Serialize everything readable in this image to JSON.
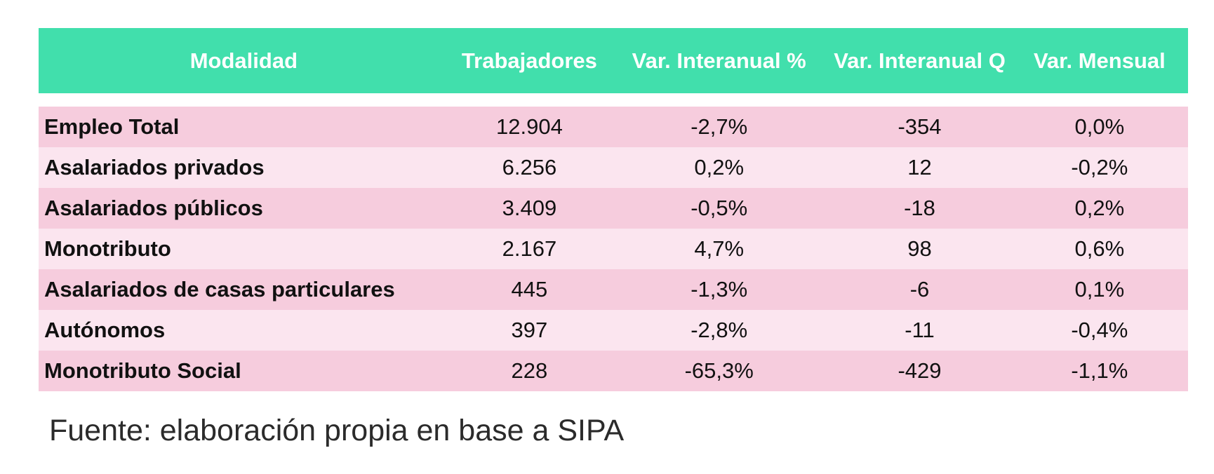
{
  "colors": {
    "page_bg": "#ffffff",
    "header_bg": "#41dfac",
    "header_text": "#ffffff",
    "row_odd_bg": "#f6ccdd",
    "row_even_bg": "#fbe5ef",
    "cell_text": "#111111",
    "source_text": "#2b2b2b"
  },
  "table": {
    "columns": [
      {
        "label": "Modalidad"
      },
      {
        "label": "Trabajadores"
      },
      {
        "label": "Var. Interanual %"
      },
      {
        "label": "Var. Interanual Q"
      },
      {
        "label": "Var. Mensual"
      }
    ],
    "rows": [
      {
        "modalidad": "Empleo Total",
        "trabajadores": "12.904",
        "var_interanual_pct": "-2,7%",
        "var_interanual_q": "-354",
        "var_mensual": "0,0%"
      },
      {
        "modalidad": "Asalariados privados",
        "trabajadores": "6.256",
        "var_interanual_pct": "0,2%",
        "var_interanual_q": "12",
        "var_mensual": "-0,2%"
      },
      {
        "modalidad": "Asalariados públicos",
        "trabajadores": "3.409",
        "var_interanual_pct": "-0,5%",
        "var_interanual_q": "-18",
        "var_mensual": "0,2%"
      },
      {
        "modalidad": "Monotributo",
        "trabajadores": "2.167",
        "var_interanual_pct": "4,7%",
        "var_interanual_q": "98",
        "var_mensual": "0,6%"
      },
      {
        "modalidad": "Asalariados de casas particulares",
        "trabajadores": "445",
        "var_interanual_pct": "-1,3%",
        "var_interanual_q": "-6",
        "var_mensual": "0,1%"
      },
      {
        "modalidad": "Autónomos",
        "trabajadores": "397",
        "var_interanual_pct": "-2,8%",
        "var_interanual_q": "-11",
        "var_mensual": "-0,4%"
      },
      {
        "modalidad": "Monotributo Social",
        "trabajadores": "228",
        "var_interanual_pct": "-65,3%",
        "var_interanual_q": "-429",
        "var_mensual": "-1,1%"
      }
    ]
  },
  "footer": {
    "source": "Fuente: elaboración propia en base a SIPA"
  },
  "chart_data": {
    "type": "table",
    "title": "",
    "columns": [
      "Modalidad",
      "Trabajadores",
      "Var. Interanual %",
      "Var. Interanual Q",
      "Var. Mensual"
    ],
    "rows": [
      [
        "Empleo Total",
        "12.904",
        "-2,7%",
        "-354",
        "0,0%"
      ],
      [
        "Asalariados privados",
        "6.256",
        "0,2%",
        "12",
        "-0,2%"
      ],
      [
        "Asalariados públicos",
        "3.409",
        "-0,5%",
        "-18",
        "0,2%"
      ],
      [
        "Monotributo",
        "2.167",
        "4,7%",
        "98",
        "0,6%"
      ],
      [
        "Asalariados de casas particulares",
        "445",
        "-1,3%",
        "-6",
        "0,1%"
      ],
      [
        "Autónomos",
        "397",
        "-2,8%",
        "-11",
        "-0,4%"
      ],
      [
        "Monotributo Social",
        "228",
        "-65,3%",
        "-429",
        "-1,1%"
      ]
    ],
    "annotations": [
      "Fuente: elaboración propia en base a SIPA"
    ],
    "layout_hints": {
      "header_fill": "#41dfac",
      "row_fill_alternating": [
        "#f6ccdd",
        "#fbe5ef"
      ],
      "first_column_align": "left",
      "numeric_columns_align": "center"
    }
  }
}
